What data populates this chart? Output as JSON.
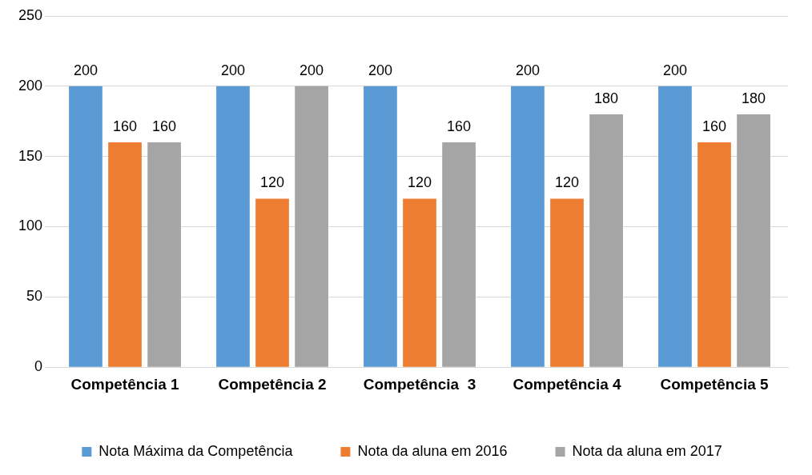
{
  "chart_data": {
    "type": "bar",
    "categories": [
      "Competência 1",
      "Competência 2",
      "Competência  3",
      "Competência 4",
      "Competência 5"
    ],
    "series": [
      {
        "name": "Nota Máxima da Competência",
        "color": "#5b9bd5",
        "values": [
          200,
          200,
          200,
          200,
          200
        ]
      },
      {
        "name": "Nota da aluna em 2016",
        "color": "#ed7d31",
        "values": [
          160,
          120,
          120,
          120,
          160
        ]
      },
      {
        "name": "Nota da aluna em 2017",
        "color": "#a5a5a5",
        "values": [
          160,
          200,
          160,
          180,
          180
        ]
      }
    ],
    "ylim": [
      0,
      250
    ],
    "yticks": [
      0,
      50,
      100,
      150,
      200,
      250
    ],
    "grid": "y",
    "legend": "bottom",
    "data_labels": true
  }
}
